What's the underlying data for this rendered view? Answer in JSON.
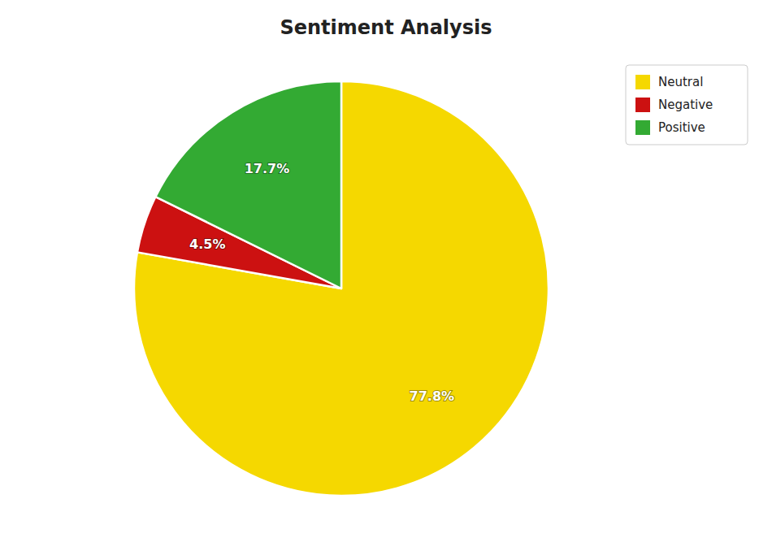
{
  "chart_data": {
    "type": "pie",
    "title": "Sentiment Analysis",
    "categories": [
      "Neutral",
      "Negative",
      "Positive"
    ],
    "values": [
      77.8,
      4.5,
      17.7
    ],
    "value_labels": [
      "77.8%",
      "4.5%",
      "17.7%"
    ],
    "colors": [
      "#f5d800",
      "#cc1111",
      "#33aa33"
    ],
    "data_labels": true,
    "legend": "upper right"
  }
}
